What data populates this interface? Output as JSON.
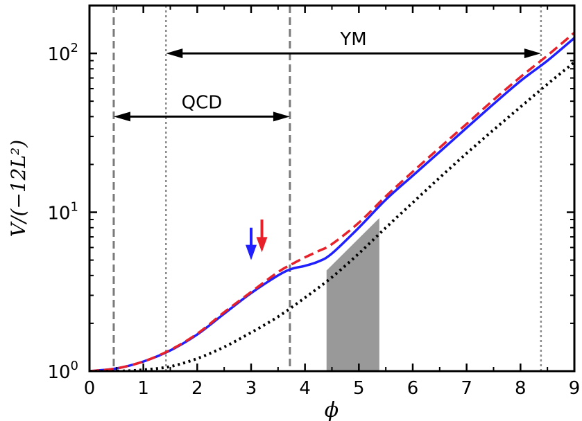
{
  "chart_data": {
    "type": "line",
    "xlabel": "ϕ",
    "ylabel": "V/(−12L²)",
    "xscale": "linear",
    "yscale": "log",
    "xlim": [
      0,
      9
    ],
    "ylim": [
      1,
      200
    ],
    "grid": false,
    "x_ticks": [
      "0",
      "1",
      "2",
      "3",
      "4",
      "5",
      "6",
      "7",
      "8",
      "9"
    ],
    "y_ticks": [
      {
        "value": 1,
        "base": "10",
        "exp": "0"
      },
      {
        "value": 10,
        "base": "10",
        "exp": "1"
      },
      {
        "value": 100,
        "base": "10",
        "exp": "2"
      }
    ],
    "series": [
      {
        "style": "solid",
        "color": "#1f1fff",
        "x": [
          0,
          0.5,
          1,
          1.5,
          2,
          2.5,
          3,
          3.5,
          3.75,
          4,
          4.25,
          4.5,
          5,
          5.5,
          6,
          6.5,
          7,
          7.5,
          8,
          8.5,
          9
        ],
        "y": [
          1.0,
          1.04,
          1.15,
          1.35,
          1.7,
          2.3,
          3.1,
          4.0,
          4.4,
          4.6,
          4.9,
          5.5,
          8.0,
          12.0,
          17.0,
          24.0,
          34.0,
          48.0,
          67.0,
          90.0,
          125.0
        ]
      },
      {
        "style": "dashed",
        "color": "#e8202a",
        "x": [
          0,
          0.5,
          1,
          1.5,
          2,
          2.5,
          3,
          3.5,
          3.75,
          4,
          4.25,
          4.5,
          5,
          5.5,
          6,
          6.5,
          7,
          7.5,
          8,
          8.5,
          9
        ],
        "y": [
          1.0,
          1.04,
          1.15,
          1.36,
          1.72,
          2.35,
          3.15,
          4.2,
          4.7,
          5.2,
          5.7,
          6.3,
          8.6,
          12.6,
          18.0,
          25.5,
          36.0,
          51.0,
          71.0,
          97.0,
          135.0
        ]
      },
      {
        "style": "dotted",
        "color": "#000000",
        "x": [
          0,
          0.5,
          1,
          1.5,
          2,
          2.5,
          3,
          3.5,
          4,
          4.5,
          5,
          5.5,
          6,
          6.5,
          7,
          7.5,
          8,
          8.5,
          9
        ],
        "y": [
          1.0,
          1.0,
          1.02,
          1.07,
          1.2,
          1.42,
          1.75,
          2.2,
          2.9,
          3.9,
          5.5,
          8.0,
          11.5,
          16.5,
          23.5,
          33.0,
          46.0,
          64.0,
          88.0
        ]
      }
    ],
    "vertical_lines": [
      {
        "x": 0.45,
        "style": "dashed"
      },
      {
        "x": 3.72,
        "style": "dashed"
      },
      {
        "x": 1.42,
        "style": "dotted"
      },
      {
        "x": 8.38,
        "style": "dotted"
      }
    ],
    "shaded_region": {
      "x": [
        4.4,
        5.38
      ],
      "y_bottom": 1,
      "y_left_top": 4.3,
      "y_right_top": 9.2,
      "color": "#999999"
    },
    "annotations": [
      {
        "text": "QCD",
        "x_from": 0.45,
        "x_to": 3.72,
        "y": 40
      },
      {
        "text": "YM",
        "x_from": 1.42,
        "x_to": 8.38,
        "y": 100
      }
    ],
    "markers": [
      {
        "x": 3.0,
        "y_top": 8.0,
        "y_tip": 5.0,
        "color": "#1f1fff"
      },
      {
        "x": 3.2,
        "y_top": 9.0,
        "y_tip": 5.6,
        "color": "#e8202a"
      }
    ]
  }
}
